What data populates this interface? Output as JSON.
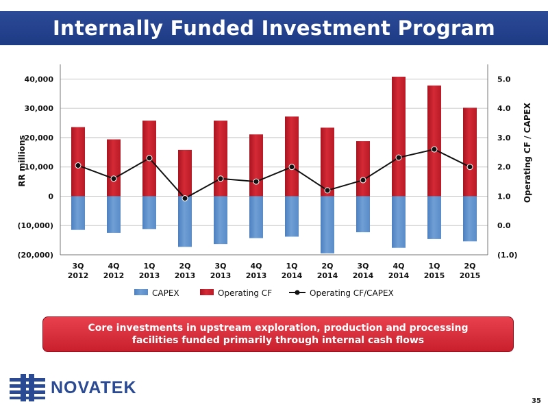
{
  "title": "Internally Funded Investment Program",
  "chart_data": {
    "type": "bar",
    "categories": [
      [
        "3Q",
        "2012"
      ],
      [
        "4Q",
        "2012"
      ],
      [
        "1Q",
        "2013"
      ],
      [
        "2Q",
        "2013"
      ],
      [
        "3Q",
        "2013"
      ],
      [
        "4Q",
        "2013"
      ],
      [
        "1Q",
        "2014"
      ],
      [
        "2Q",
        "2014"
      ],
      [
        "3Q",
        "2014"
      ],
      [
        "4Q",
        "2014"
      ],
      [
        "1Q",
        "2015"
      ],
      [
        "2Q",
        "2015"
      ]
    ],
    "ylabel": "RR millions",
    "y2label": "Operating CF / CAPEX",
    "ylim": [
      -20000,
      45000
    ],
    "y_ticks": [
      -20000,
      -10000,
      0,
      10000,
      20000,
      30000,
      40000
    ],
    "y_tick_labels": [
      "(20,000)",
      "(10,000)",
      "0",
      "10,000",
      "20,000",
      "30,000",
      "40,000"
    ],
    "y2lim": [
      -1.0,
      5.5
    ],
    "y2_ticks": [
      -1.0,
      0.0,
      1.0,
      2.0,
      3.0,
      4.0,
      5.0
    ],
    "y2_tick_labels": [
      "(1.0)",
      "0.0",
      "1.0",
      "2.0",
      "3.0",
      "4.0",
      "5.0"
    ],
    "series": [
      {
        "name": "CAPEX",
        "type": "bar",
        "color": "#6f9fd4",
        "values": [
          -11500,
          -12500,
          -11200,
          -17300,
          -16300,
          -14300,
          -13800,
          -19500,
          -12300,
          -17600,
          -14600,
          -15400
        ]
      },
      {
        "name": "Operating CF",
        "type": "bar",
        "color": "#d42a36",
        "values": [
          23600,
          19400,
          25800,
          15800,
          25800,
          21100,
          27200,
          23400,
          18800,
          40800,
          37800,
          30200
        ]
      },
      {
        "name": "Operating CF/CAPEX",
        "type": "line",
        "axis": "secondary",
        "color": "#111111",
        "values": [
          2.05,
          1.6,
          2.3,
          0.93,
          1.6,
          1.5,
          2.0,
          1.2,
          1.55,
          2.32,
          2.6,
          2.0
        ]
      }
    ],
    "legend_position": "bottom",
    "grid": true
  },
  "callout": "Core investments in upstream exploration, production and processing facilities funded primarily through internal cash flows",
  "logo_text": "NOVATEK",
  "page_number": "35",
  "colors": {
    "title_bar": "#1f3d88",
    "callout": "#d7303c",
    "brand_blue": "#2a4a94"
  }
}
